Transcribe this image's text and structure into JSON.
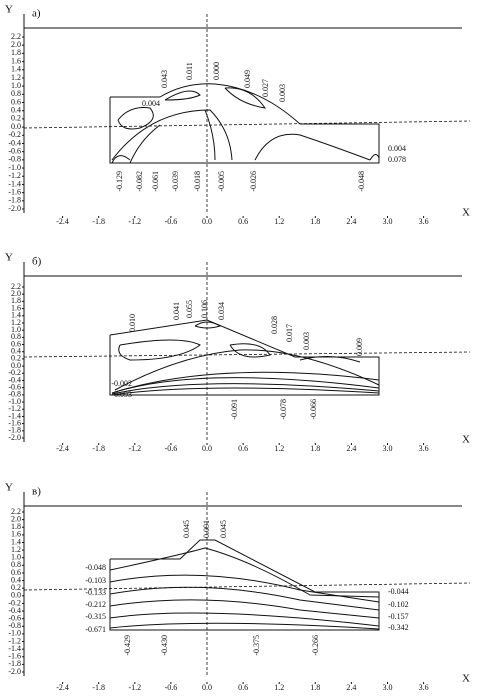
{
  "chart_data": [
    {
      "type": "contour",
      "panel_label": "а)",
      "x_label": "X",
      "y_label": "Y",
      "xlim": [
        -2.4,
        3.6
      ],
      "ylim": [
        -2.0,
        2.2
      ],
      "xticks": [
        {
          "value": -2.4,
          "label": "-2.4"
        },
        {
          "value": -1.8,
          "label": "-1.8"
        },
        {
          "value": -1.2,
          "label": "-1.2"
        },
        {
          "value": -0.6,
          "label": "-0.6"
        },
        {
          "value": 0,
          "label": "0.0"
        },
        {
          "value": 0.6,
          "label": "0.6"
        },
        {
          "value": 1.2,
          "label": "1.2"
        },
        {
          "value": 1.8,
          "label": "1.8"
        },
        {
          "value": 2.4,
          "label": "2.4"
        },
        {
          "value": 3.0,
          "label": "3.0"
        },
        {
          "value": 3.6,
          "label": "3.6"
        }
      ],
      "yticks": [
        {
          "value": 2.2,
          "label": "2.2"
        },
        {
          "value": 2.0,
          "label": "2.0"
        },
        {
          "value": 1.8,
          "label": "1.8"
        },
        {
          "value": 1.6,
          "label": "1.6"
        },
        {
          "value": 1.4,
          "label": "1.4"
        },
        {
          "value": 1.2,
          "label": "1.2"
        },
        {
          "value": 1.0,
          "label": "1.0"
        },
        {
          "value": 0.8,
          "label": "0.8"
        },
        {
          "value": 0.6,
          "label": "0.6"
        },
        {
          "value": 0.4,
          "label": "0.4"
        },
        {
          "value": 0.2,
          "label": "0.2"
        },
        {
          "value": 0,
          "label": "0.0"
        },
        {
          "value": -0.2,
          "label": "-0.2"
        },
        {
          "value": -0.4,
          "label": "-0.4"
        },
        {
          "value": -0.6,
          "label": "-0.6"
        },
        {
          "value": -0.8,
          "label": "-0.8"
        },
        {
          "value": -1.0,
          "label": "-1.0"
        },
        {
          "value": -1.2,
          "label": "-1.2"
        },
        {
          "value": -1.4,
          "label": "-1.4"
        },
        {
          "value": -1.6,
          "label": "-1.6"
        },
        {
          "value": -1.8,
          "label": "-1.8"
        },
        {
          "value": -2.0,
          "label": "-2.0"
        }
      ],
      "contour_labels": [
        "0.043",
        "0.011",
        "0.000",
        "0.049",
        "0.027",
        "0.003",
        "0.004",
        "0.004",
        "0.078",
        "-0.129",
        "-0.082",
        "-0.061",
        "-0.039",
        "-0.018",
        "-0.005",
        "-0.026",
        "-0.048"
      ]
    },
    {
      "type": "contour",
      "panel_label": "б)",
      "x_label": "X",
      "y_label": "Y",
      "xlim": [
        -2.4,
        3.6
      ],
      "ylim": [
        -2.0,
        2.2
      ],
      "xticks": [
        {
          "value": -2.4,
          "label": "-2.4"
        },
        {
          "value": -1.8,
          "label": "-1.8"
        },
        {
          "value": -1.2,
          "label": "-1.2"
        },
        {
          "value": -0.6,
          "label": "-0.6"
        },
        {
          "value": 0,
          "label": "0.0"
        },
        {
          "value": 0.6,
          "label": "0.6"
        },
        {
          "value": 1.2,
          "label": "1.2"
        },
        {
          "value": 1.8,
          "label": "1.8"
        },
        {
          "value": 2.4,
          "label": "2.4"
        },
        {
          "value": 3.0,
          "label": "3.0"
        },
        {
          "value": 3.6,
          "label": "3.6"
        }
      ],
      "yticks": [
        {
          "value": 2.2,
          "label": "2.2"
        },
        {
          "value": 2.0,
          "label": "2.0"
        },
        {
          "value": 1.8,
          "label": "1.8"
        },
        {
          "value": 1.6,
          "label": "1.6"
        },
        {
          "value": 1.4,
          "label": "1.4"
        },
        {
          "value": 1.2,
          "label": "1.2"
        },
        {
          "value": 1.0,
          "label": "1.0"
        },
        {
          "value": 0.8,
          "label": "0.8"
        },
        {
          "value": 0.6,
          "label": "0.6"
        },
        {
          "value": 0.4,
          "label": "0.4"
        },
        {
          "value": 0.2,
          "label": "0.2"
        },
        {
          "value": 0,
          "label": "0.0"
        },
        {
          "value": -0.2,
          "label": "-0.2"
        },
        {
          "value": -0.4,
          "label": "-0.4"
        },
        {
          "value": -0.6,
          "label": "-0.6"
        },
        {
          "value": -0.8,
          "label": "-0.8"
        },
        {
          "value": -1.0,
          "label": "-1.0"
        },
        {
          "value": -1.2,
          "label": "-1.2"
        },
        {
          "value": -1.4,
          "label": "-1.4"
        },
        {
          "value": -1.6,
          "label": "-1.6"
        },
        {
          "value": -1.8,
          "label": "-1.8"
        },
        {
          "value": -2.0,
          "label": "-2.0"
        }
      ],
      "contour_labels": [
        "0.010",
        "0.041",
        "0.055",
        "0.106",
        "0.034",
        "0.028",
        "0.017",
        "0.003",
        "0.009",
        "-0.002",
        "-0.093",
        "-0.091",
        "-0.078",
        "-0.066"
      ]
    },
    {
      "type": "contour",
      "panel_label": "в)",
      "x_label": "X",
      "y_label": "Y",
      "xlim": [
        -2.4,
        3.6
      ],
      "ylim": [
        -2.0,
        2.2
      ],
      "xticks": [
        {
          "value": -2.4,
          "label": "-2.4"
        },
        {
          "value": -1.8,
          "label": "-1.8"
        },
        {
          "value": -1.2,
          "label": "-1.2"
        },
        {
          "value": -0.6,
          "label": "-0.6"
        },
        {
          "value": 0,
          "label": "0.0"
        },
        {
          "value": 0.6,
          "label": "0.6"
        },
        {
          "value": 1.2,
          "label": "1.2"
        },
        {
          "value": 1.8,
          "label": "1.8"
        },
        {
          "value": 2.4,
          "label": "2.4"
        },
        {
          "value": 3.0,
          "label": "3.0"
        },
        {
          "value": 3.6,
          "label": "3.6"
        }
      ],
      "yticks": [
        {
          "value": 2.2,
          "label": "2.2"
        },
        {
          "value": 2.0,
          "label": "2.0"
        },
        {
          "value": 1.8,
          "label": "1.8"
        },
        {
          "value": 1.6,
          "label": "1.6"
        },
        {
          "value": 1.4,
          "label": "1.4"
        },
        {
          "value": 1.2,
          "label": "1.2"
        },
        {
          "value": 1.0,
          "label": "1.0"
        },
        {
          "value": 0.8,
          "label": "0.8"
        },
        {
          "value": 0.6,
          "label": "0.6"
        },
        {
          "value": 0.4,
          "label": "0.4"
        },
        {
          "value": 0.2,
          "label": "0.2"
        },
        {
          "value": 0,
          "label": "0.0"
        },
        {
          "value": -0.2,
          "label": "-0.2"
        },
        {
          "value": -0.4,
          "label": "-0.4"
        },
        {
          "value": -0.6,
          "label": "-0.6"
        },
        {
          "value": -0.8,
          "label": "-0.8"
        },
        {
          "value": -1.0,
          "label": "-1.0"
        },
        {
          "value": -1.2,
          "label": "-1.2"
        },
        {
          "value": -1.4,
          "label": "-1.4"
        },
        {
          "value": -1.6,
          "label": "-1.6"
        },
        {
          "value": -1.8,
          "label": "-1.8"
        },
        {
          "value": -2.0,
          "label": "-2.0"
        }
      ],
      "contour_labels": [
        "0.045",
        "0.091",
        "0.045",
        "-0.048",
        "-0.103",
        "-0.133",
        "-0.212",
        "-0.315",
        "-0.671",
        "-0.044",
        "-0.102",
        "-0.157",
        "-0.342",
        "-0.429",
        "-0.430",
        "-0.375",
        "-0.266"
      ]
    }
  ]
}
